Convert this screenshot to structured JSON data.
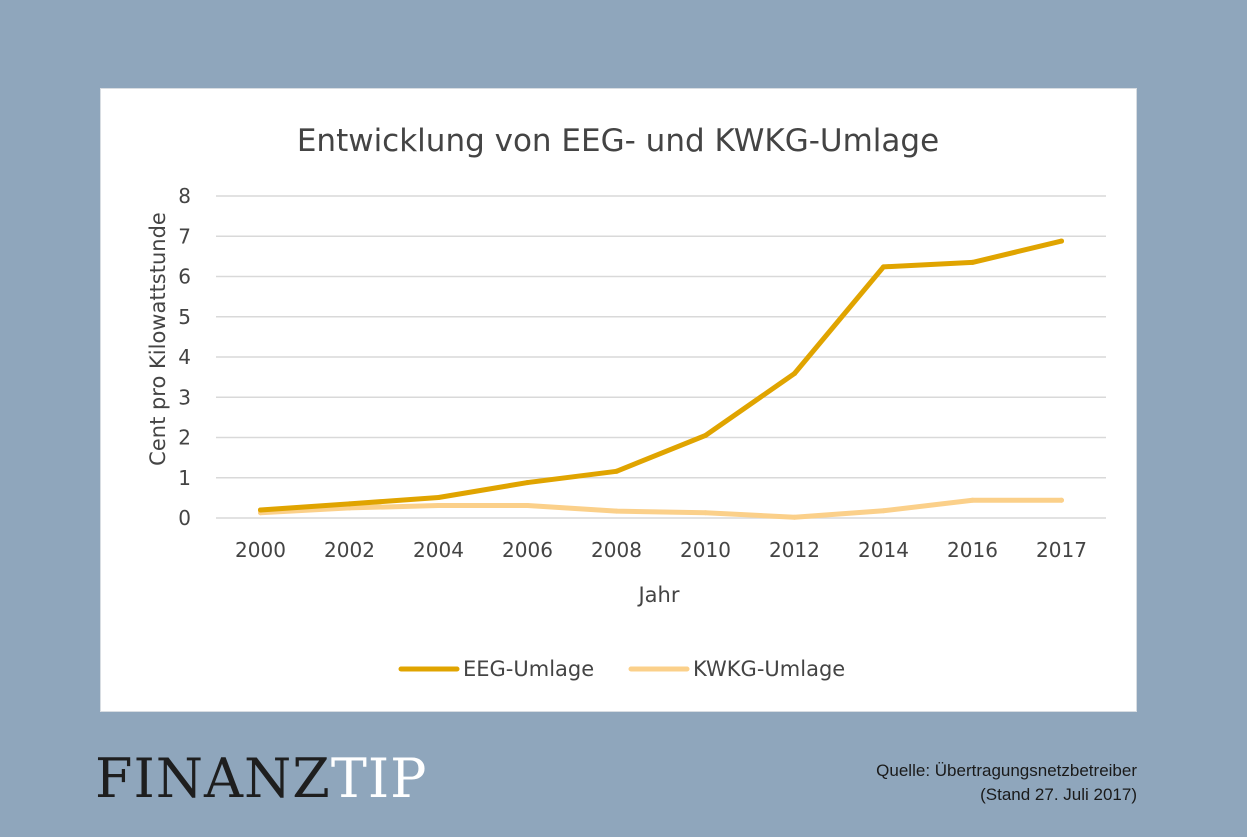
{
  "branding": {
    "logo_word1": "FINANZ",
    "logo_word2": "TIP"
  },
  "source": {
    "line1": "Quelle: Übertragungsnetzbetreiber",
    "line2": "(Stand 27. Juli 2017)"
  },
  "colors": {
    "background": "#8fa6bc",
    "eeg": "#e0a400",
    "kwkg": "#fbd08a",
    "grid": "#d9d9d9"
  },
  "chart_data": {
    "type": "line",
    "title": "Entwicklung von EEG- und KWKG-Umlage",
    "xlabel": "Jahr",
    "ylabel": "Cent pro Kilowattstunde",
    "categories": [
      "2000",
      "2002",
      "2004",
      "2006",
      "2008",
      "2010",
      "2012",
      "2014",
      "2016",
      "2017"
    ],
    "ylim": [
      0,
      8
    ],
    "yticks": [
      "0",
      "1",
      "2",
      "3",
      "4",
      "5",
      "6",
      "7",
      "8"
    ],
    "grid": true,
    "legend_position": "bottom",
    "series": [
      {
        "name": "EEG-Umlage",
        "values": [
          0.2,
          0.35,
          0.51,
          0.88,
          1.16,
          2.05,
          3.59,
          6.24,
          6.35,
          6.88
        ]
      },
      {
        "name": "KWKG-Umlage",
        "values": [
          0.13,
          0.25,
          0.31,
          0.31,
          0.17,
          0.13,
          0.02,
          0.18,
          0.44,
          0.44
        ]
      }
    ]
  }
}
